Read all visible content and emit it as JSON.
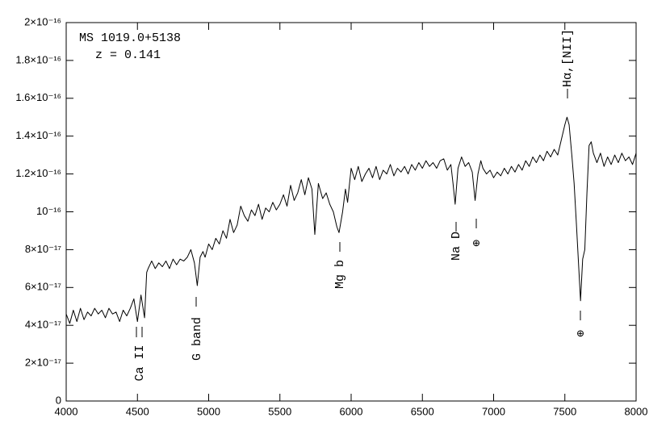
{
  "chart_data": {
    "type": "line",
    "color": "#000000",
    "annotations": [
      "MS 1019.0+5138",
      "z = 0.141",
      "Ca II",
      "G band",
      "Mg b",
      "Na D",
      "Hα,[NII]",
      "⊕",
      "⊕"
    ],
    "x": [
      4000,
      4025,
      4050,
      4075,
      4100,
      4125,
      4150,
      4175,
      4200,
      4225,
      4250,
      4275,
      4300,
      4325,
      4350,
      4375,
      4400,
      4425,
      4450,
      4475,
      4500,
      4525,
      4550,
      4565,
      4575,
      4600,
      4625,
      4650,
      4675,
      4700,
      4725,
      4750,
      4775,
      4800,
      4825,
      4850,
      4875,
      4900,
      4920,
      4940,
      4960,
      4975,
      5000,
      5025,
      5050,
      5075,
      5100,
      5125,
      5150,
      5175,
      5200,
      5225,
      5250,
      5275,
      5300,
      5325,
      5350,
      5375,
      5400,
      5425,
      5450,
      5475,
      5500,
      5525,
      5550,
      5575,
      5600,
      5625,
      5650,
      5675,
      5700,
      5725,
      5745,
      5770,
      5800,
      5825,
      5850,
      5875,
      5900,
      5915,
      5940,
      5960,
      5975,
      6000,
      6025,
      6050,
      6075,
      6100,
      6125,
      6150,
      6175,
      6200,
      6225,
      6250,
      6275,
      6300,
      6325,
      6350,
      6375,
      6400,
      6425,
      6450,
      6475,
      6500,
      6525,
      6550,
      6575,
      6600,
      6625,
      6650,
      6675,
      6700,
      6715,
      6730,
      6750,
      6775,
      6800,
      6825,
      6850,
      6870,
      6890,
      6910,
      6925,
      6950,
      6975,
      7000,
      7025,
      7050,
      7075,
      7100,
      7125,
      7150,
      7175,
      7200,
      7225,
      7250,
      7275,
      7300,
      7325,
      7350,
      7375,
      7400,
      7425,
      7450,
      7475,
      7500,
      7515,
      7530,
      7550,
      7565,
      7580,
      7595,
      7610,
      7625,
      7640,
      7655,
      7670,
      7685,
      7700,
      7725,
      7750,
      7775,
      7800,
      7825,
      7850,
      7875,
      7900,
      7925,
      7950,
      7975,
      8000
    ],
    "values": [
      4.6e-17,
      4.1e-17,
      4.8e-17,
      4.2e-17,
      4.9e-17,
      4.3e-17,
      4.7e-17,
      4.5e-17,
      4.9e-17,
      4.6e-17,
      4.8e-17,
      4.4e-17,
      4.9e-17,
      4.6e-17,
      4.7e-17,
      4.2e-17,
      4.8e-17,
      4.5e-17,
      4.9e-17,
      5.4e-17,
      4.2e-17,
      5.6e-17,
      4.4e-17,
      6.8e-17,
      7e-17,
      7.4e-17,
      7e-17,
      7.3e-17,
      7.1e-17,
      7.4e-17,
      7e-17,
      7.5e-17,
      7.2e-17,
      7.5e-17,
      7.4e-17,
      7.6e-17,
      8e-17,
      7.3e-17,
      6.1e-17,
      7.6e-17,
      7.9e-17,
      7.6e-17,
      8.3e-17,
      8e-17,
      8.6e-17,
      8.3e-17,
      9e-17,
      8.6e-17,
      9.6e-17,
      8.9e-17,
      9.3e-17,
      1.03e-16,
      9.8e-17,
      9.5e-17,
      1.01e-16,
      9.8e-17,
      1.04e-16,
      9.6e-17,
      1.02e-16,
      1e-16,
      1.05e-16,
      1.01e-16,
      1.04e-16,
      1.09e-16,
      1.03e-16,
      1.14e-16,
      1.06e-16,
      1.1e-16,
      1.17e-16,
      1.09e-16,
      1.18e-16,
      1.12e-16,
      8.8e-17,
      1.15e-16,
      1.07e-16,
      1.1e-16,
      1.04e-16,
      1e-16,
      9.2e-17,
      8.9e-17,
      1e-16,
      1.12e-16,
      1.05e-16,
      1.23e-16,
      1.17e-16,
      1.24e-16,
      1.16e-16,
      1.2e-16,
      1.23e-16,
      1.18e-16,
      1.24e-16,
      1.17e-16,
      1.22e-16,
      1.2e-16,
      1.25e-16,
      1.19e-16,
      1.23e-16,
      1.21e-16,
      1.24e-16,
      1.2e-16,
      1.25e-16,
      1.22e-16,
      1.26e-16,
      1.23e-16,
      1.27e-16,
      1.24e-16,
      1.26e-16,
      1.23e-16,
      1.27e-16,
      1.28e-16,
      1.22e-16,
      1.25e-16,
      1.15e-16,
      1.04e-16,
      1.23e-16,
      1.29e-16,
      1.24e-16,
      1.26e-16,
      1.21e-16,
      1.06e-16,
      1.2e-16,
      1.27e-16,
      1.23e-16,
      1.2e-16,
      1.22e-16,
      1.18e-16,
      1.21e-16,
      1.19e-16,
      1.23e-16,
      1.2e-16,
      1.24e-16,
      1.21e-16,
      1.25e-16,
      1.22e-16,
      1.27e-16,
      1.24e-16,
      1.29e-16,
      1.26e-16,
      1.3e-16,
      1.27e-16,
      1.32e-16,
      1.29e-16,
      1.33e-16,
      1.3e-16,
      1.38e-16,
      1.46e-16,
      1.5e-16,
      1.46e-16,
      1.29e-16,
      1.15e-16,
      9.5e-17,
      7.4e-17,
      5.3e-17,
      7.5e-17,
      8e-17,
      1.1e-16,
      1.35e-16,
      1.37e-16,
      1.31e-16,
      1.26e-16,
      1.31e-16,
      1.24e-16,
      1.29e-16,
      1.25e-16,
      1.3e-16,
      1.26e-16,
      1.31e-16,
      1.27e-16,
      1.29e-16,
      1.25e-16,
      1.31e-16
    ],
    "xlim": [
      4000,
      8000
    ],
    "xticks": [
      4000,
      4500,
      5000,
      5500,
      6000,
      6500,
      7000,
      7500,
      8000
    ],
    "ylim": [
      0,
      2e-16
    ],
    "yticks": [
      0,
      {
        "value": 2e-17,
        "label": "2×10⁻¹⁷"
      },
      {
        "value": 4e-17,
        "label": "4×10⁻¹⁷"
      },
      {
        "value": 6e-17,
        "label": "6×10⁻¹⁷"
      },
      {
        "value": 8e-17,
        "label": "8×10⁻¹⁷"
      },
      {
        "value": 1e-16,
        "label": "10⁻¹⁶"
      },
      {
        "value": 1.2e-16,
        "label": "1.2×10⁻¹⁶"
      },
      {
        "value": 1.4e-16,
        "label": "1.4×10⁻¹⁶"
      },
      {
        "value": 1.6e-16,
        "label": "1.6×10⁻¹⁶"
      },
      {
        "value": 1.8e-16,
        "label": "1.8×10⁻¹⁶"
      },
      {
        "value": 2e-16,
        "label": "2×10⁻¹⁶"
      }
    ]
  }
}
